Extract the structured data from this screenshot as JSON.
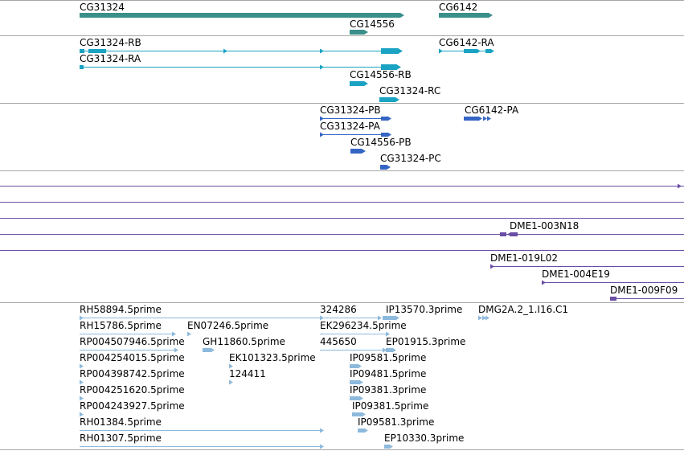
{
  "colors": {
    "gene": "#3a8f8a",
    "transcript": "#1aa3c2",
    "protein": "#3565c4",
    "clone": "#6a4ea5",
    "est": "#8db9dc",
    "divider": "#a6a6a6",
    "text": "#000000"
  },
  "gene_track": {
    "features": [
      {
        "name": "CG31324"
      },
      {
        "name": "CG6142"
      },
      {
        "name": "CG14556"
      }
    ]
  },
  "transcript_track": {
    "features": [
      {
        "name": "CG31324-RB"
      },
      {
        "name": "CG6142-RA"
      },
      {
        "name": "CG31324-RA"
      },
      {
        "name": "CG14556-RB"
      },
      {
        "name": "CG31324-RC"
      }
    ]
  },
  "protein_track": {
    "features": [
      {
        "name": "CG31324-PB"
      },
      {
        "name": "CG6142-PA"
      },
      {
        "name": "CG31324-PA"
      },
      {
        "name": "CG14556-PB"
      },
      {
        "name": "CG31324-PC"
      }
    ]
  },
  "clone_track": {
    "features": [
      {
        "name": "DME1-003N18"
      },
      {
        "name": "DME1-019L02"
      },
      {
        "name": "DME1-004E19"
      },
      {
        "name": "DME1-009F09"
      }
    ]
  },
  "est_track": {
    "features": [
      {
        "name": "RH58894.5prime"
      },
      {
        "name": "324286"
      },
      {
        "name": "IP13570.3prime"
      },
      {
        "name": "DMG2A.2_1.I16.C1"
      },
      {
        "name": "RH15786.5prime"
      },
      {
        "name": "EN07246.5prime"
      },
      {
        "name": "EK296234.5prime"
      },
      {
        "name": "RP004507946.5prime"
      },
      {
        "name": "GH11860.5prime"
      },
      {
        "name": "445650"
      },
      {
        "name": "EP01915.3prime"
      },
      {
        "name": "RP004254015.5prime"
      },
      {
        "name": "EK101323.5prime"
      },
      {
        "name": "IP09581.5prime"
      },
      {
        "name": "RP004398742.5prime"
      },
      {
        "name": "124411"
      },
      {
        "name": "IP09481.5prime"
      },
      {
        "name": "RP004251620.5prime"
      },
      {
        "name": "IP09381.3prime"
      },
      {
        "name": "RP004243927.5prime"
      },
      {
        "name": "IP09381.5prime"
      },
      {
        "name": "RH01384.5prime"
      },
      {
        "name": "IP09581.3prime"
      },
      {
        "name": "RH01307.5prime"
      },
      {
        "name": "EP10330.3prime"
      }
    ]
  }
}
